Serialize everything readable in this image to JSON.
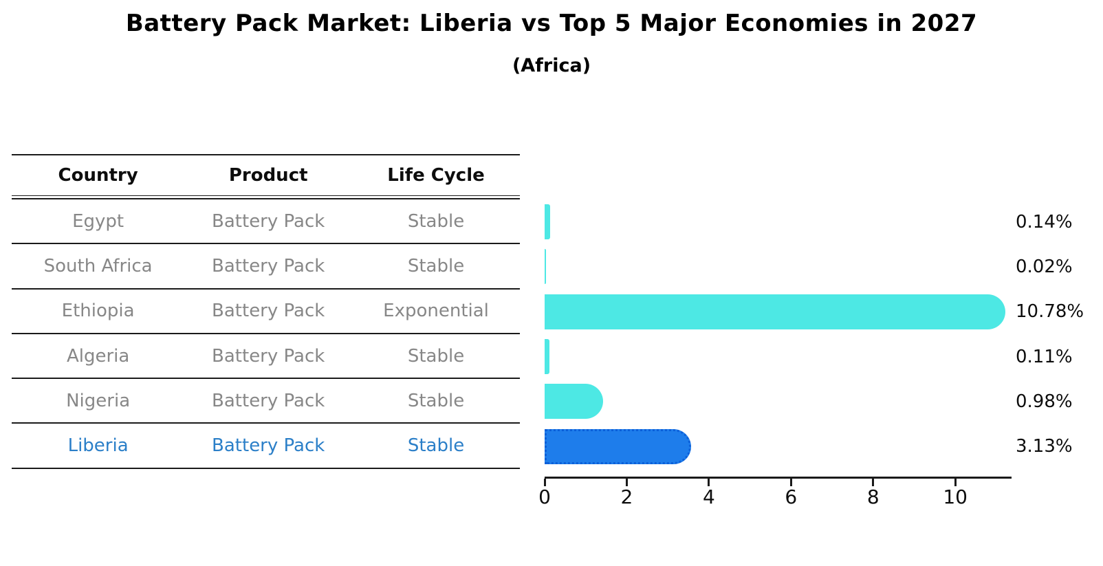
{
  "title": "Battery Pack Market: Liberia vs Top 5 Major Economies in 2027",
  "subtitle": "(Africa)",
  "table": {
    "headers": [
      "Country",
      "Product",
      "Life Cycle"
    ],
    "rows": [
      {
        "country": "Egypt",
        "product": "Battery Pack",
        "life_cycle": "Stable"
      },
      {
        "country": "South Africa",
        "product": "Battery Pack",
        "life_cycle": "Stable"
      },
      {
        "country": "Ethiopia",
        "product": "Battery Pack",
        "life_cycle": "Exponential"
      },
      {
        "country": "Algeria",
        "product": "Battery Pack",
        "life_cycle": "Stable"
      },
      {
        "country": "Nigeria",
        "product": "Battery Pack",
        "life_cycle": "Stable"
      },
      {
        "country": "Liberia",
        "product": "Battery Pack",
        "life_cycle": "Stable"
      }
    ]
  },
  "chart_data": {
    "type": "bar",
    "orientation": "horizontal",
    "title": "Battery Pack Market: Liberia vs Top 5 Major Economies in 2027",
    "subtitle": "(Africa)",
    "categories": [
      "Egypt",
      "South Africa",
      "Ethiopia",
      "Algeria",
      "Nigeria",
      "Liberia"
    ],
    "values": [
      0.14,
      0.02,
      10.78,
      0.11,
      0.98,
      3.13
    ],
    "value_labels": [
      "0.14%",
      "0.02%",
      "10.78%",
      "0.11%",
      "0.98%",
      "3.13%"
    ],
    "xticks": [
      "0",
      "2",
      "4",
      "6",
      "8",
      "10"
    ],
    "xlim": [
      0,
      11.37
    ],
    "grid": false,
    "legend": null,
    "bar_color": "#4de8e4",
    "highlight_color": "#1e7deb",
    "highlight_border_color": "#0c5fd8",
    "highlight_text_color": "#2b7fc8",
    "highlight_index": 5
  }
}
